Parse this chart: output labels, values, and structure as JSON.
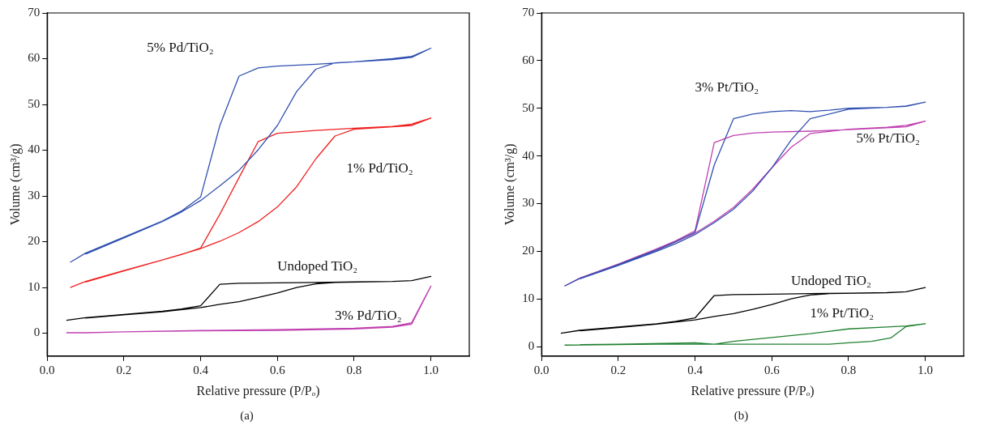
{
  "chart_data": [
    {
      "type": "line",
      "xlabel": "Relative pressure (P/Pₒ)",
      "ylabel": "Volume (cm³/g)",
      "annotations": [
        "(a)"
      ],
      "xlim": [
        0,
        1.1
      ],
      "xticks": [
        {
          "value": 0,
          "label": "0.0"
        },
        {
          "value": 0.2,
          "label": "0.2"
        },
        {
          "value": 0.4,
          "label": "0.4"
        },
        {
          "value": 0.6,
          "label": "0.6"
        },
        {
          "value": 0.8,
          "label": "0.8"
        },
        {
          "value": 1,
          "label": "1.0"
        }
      ],
      "ylim": [
        -5,
        70
      ],
      "yticks": [
        0,
        10,
        20,
        30,
        40,
        50,
        60,
        70
      ],
      "series": [
        {
          "name": "5% Pd/TiO₂",
          "color": "#3050b0",
          "x": [
            0.06,
            0.1,
            0.2,
            0.3,
            0.35,
            0.4,
            0.45,
            0.5,
            0.55,
            0.6,
            0.7,
            0.8,
            0.9,
            0.95,
            1.0,
            0.95,
            0.9,
            0.8,
            0.75,
            0.7,
            0.65,
            0.6,
            0.55,
            0.5,
            0.45,
            0.4,
            0.35,
            0.3,
            0.2,
            0.1
          ],
          "values": [
            15.5,
            17.5,
            21,
            24.5,
            26.7,
            29.8,
            45.4,
            56.2,
            58,
            58.4,
            58.8,
            59.3,
            59.8,
            60.3,
            62.3,
            60.5,
            60,
            59.3,
            59.1,
            57.7,
            52.8,
            45.4,
            40.1,
            35.6,
            32.2,
            29,
            26.5,
            24.4,
            20.8,
            17.3
          ]
        },
        {
          "name": "1% Pd/TiO₂",
          "color": "#f02020",
          "x": [
            0.06,
            0.1,
            0.2,
            0.3,
            0.35,
            0.4,
            0.45,
            0.5,
            0.55,
            0.6,
            0.7,
            0.8,
            0.9,
            0.95,
            1.0,
            0.95,
            0.9,
            0.8,
            0.75,
            0.7,
            0.65,
            0.6,
            0.55,
            0.5,
            0.45,
            0.4,
            0.3,
            0.2,
            0.1
          ],
          "values": [
            10,
            11.3,
            13.7,
            16,
            17.2,
            18.6,
            26,
            34,
            41.9,
            43.7,
            44.3,
            44.8,
            45.2,
            45.7,
            47,
            45.4,
            45.1,
            44.6,
            43.1,
            38.1,
            32,
            27.6,
            24.4,
            22,
            20.1,
            18.5,
            16,
            13.6,
            11.2
          ]
        },
        {
          "name": "Undoped TiO₂",
          "color": "#000000",
          "x": [
            0.05,
            0.1,
            0.2,
            0.3,
            0.35,
            0.4,
            0.45,
            0.5,
            0.6,
            0.7,
            0.8,
            0.9,
            0.95,
            1.0,
            0.95,
            0.9,
            0.75,
            0.7,
            0.65,
            0.6,
            0.55,
            0.5,
            0.45,
            0.4,
            0.3,
            0.2,
            0.1
          ],
          "values": [
            2.8,
            3.4,
            4.1,
            4.8,
            5.3,
            6,
            10.7,
            10.9,
            11,
            11.1,
            11.2,
            11.3,
            11.5,
            12.4,
            11.5,
            11.3,
            11.1,
            10.8,
            10,
            8.8,
            7.8,
            6.9,
            6.3,
            5.6,
            4.7,
            4,
            3.3
          ]
        },
        {
          "name": "3% Pd/TiO₂",
          "color": "#c040b0",
          "x": [
            0.05,
            0.1,
            0.2,
            0.4,
            0.6,
            0.8,
            0.9,
            0.95,
            1.0,
            0.95,
            0.9,
            0.8,
            0.6,
            0.4,
            0.2,
            0.1
          ],
          "values": [
            0.1,
            0.1,
            0.3,
            0.6,
            0.8,
            1.1,
            1.5,
            2.3,
            10.3,
            2,
            1.3,
            0.9,
            0.6,
            0.5,
            0.3,
            0.1
          ]
        }
      ]
    },
    {
      "type": "line",
      "xlabel": "Relative pressure (P/Pₒ)",
      "ylabel": "Volume (cm³/g)",
      "annotations": [
        "(b)"
      ],
      "xlim": [
        0,
        1.1
      ],
      "xticks": [
        {
          "value": 0,
          "label": "0.0"
        },
        {
          "value": 0.2,
          "label": "0.2"
        },
        {
          "value": 0.4,
          "label": "0.4"
        },
        {
          "value": 0.6,
          "label": "0.6"
        },
        {
          "value": 0.8,
          "label": "0.8"
        },
        {
          "value": 1,
          "label": "1.0"
        }
      ],
      "ylim": [
        -2,
        70
      ],
      "yticks": [
        0,
        10,
        20,
        30,
        40,
        50,
        60,
        70
      ],
      "series": [
        {
          "name": "3% Pt/TiO₂",
          "color": "#3050b0",
          "x": [
            0.06,
            0.1,
            0.2,
            0.3,
            0.35,
            0.4,
            0.45,
            0.5,
            0.55,
            0.6,
            0.65,
            0.7,
            0.75,
            0.8,
            0.9,
            0.95,
            1.0,
            0.95,
            0.9,
            0.8,
            0.7,
            0.65,
            0.6,
            0.55,
            0.5,
            0.45,
            0.4,
            0.35,
            0.3,
            0.2,
            0.1
          ],
          "values": [
            12.7,
            14.3,
            17.2,
            20.3,
            22,
            24,
            38.1,
            47.8,
            48.8,
            49.3,
            49.5,
            49.3,
            49.6,
            50,
            50.2,
            50.5,
            51.3,
            50.4,
            50.2,
            49.8,
            47.8,
            43.3,
            37.5,
            32.6,
            28.8,
            26,
            23.5,
            21.6,
            20,
            17,
            14.2
          ]
        },
        {
          "name": "5% Pt/TiO₂",
          "color": "#c040b0",
          "x": [
            0.06,
            0.1,
            0.2,
            0.3,
            0.35,
            0.4,
            0.45,
            0.5,
            0.55,
            0.6,
            0.7,
            0.8,
            0.9,
            0.95,
            1.0,
            0.95,
            0.9,
            0.8,
            0.7,
            0.65,
            0.6,
            0.55,
            0.5,
            0.45,
            0.4,
            0.3,
            0.2,
            0.1
          ],
          "values": [
            12.7,
            14.4,
            17.3,
            20.5,
            22.2,
            24.3,
            42.8,
            44.3,
            44.8,
            45,
            45.2,
            45.5,
            45.9,
            46.1,
            47.3,
            46.4,
            46,
            45.6,
            44.7,
            41.8,
            37.5,
            33,
            29.2,
            26.3,
            23.8,
            20.2,
            17.1,
            14.3
          ]
        },
        {
          "name": "Undoped TiO₂",
          "color": "#000000",
          "x": [
            0.05,
            0.1,
            0.2,
            0.3,
            0.35,
            0.4,
            0.45,
            0.5,
            0.6,
            0.7,
            0.8,
            0.9,
            0.95,
            1.0,
            0.95,
            0.9,
            0.75,
            0.7,
            0.65,
            0.6,
            0.55,
            0.5,
            0.45,
            0.4,
            0.3,
            0.2,
            0.1
          ],
          "values": [
            2.8,
            3.4,
            4.1,
            4.8,
            5.3,
            6,
            10.7,
            10.9,
            11,
            11.1,
            11.2,
            11.3,
            11.5,
            12.4,
            11.5,
            11.3,
            11.1,
            10.8,
            10,
            8.8,
            7.8,
            6.9,
            6.3,
            5.6,
            4.7,
            4,
            3.3
          ]
        },
        {
          "name": "1% Pt/TiO₂",
          "color": "#208030",
          "x": [
            0.06,
            0.2,
            0.3,
            0.4,
            0.45,
            0.6,
            0.7,
            0.75,
            0.8,
            0.86,
            0.91,
            0.95,
            1.0,
            0.95,
            0.9,
            0.8,
            0.7,
            0.6,
            0.5,
            0.45,
            0.4,
            0.35,
            0.2,
            0.1
          ],
          "values": [
            0.3,
            0.4,
            0.5,
            0.5,
            0.5,
            0.5,
            0.5,
            0.5,
            0.8,
            1.1,
            1.8,
            4.2,
            4.8,
            4.3,
            4.1,
            3.7,
            2.7,
            1.9,
            1.1,
            0.5,
            0.8,
            0.7,
            0.5,
            0.4
          ]
        }
      ]
    }
  ]
}
